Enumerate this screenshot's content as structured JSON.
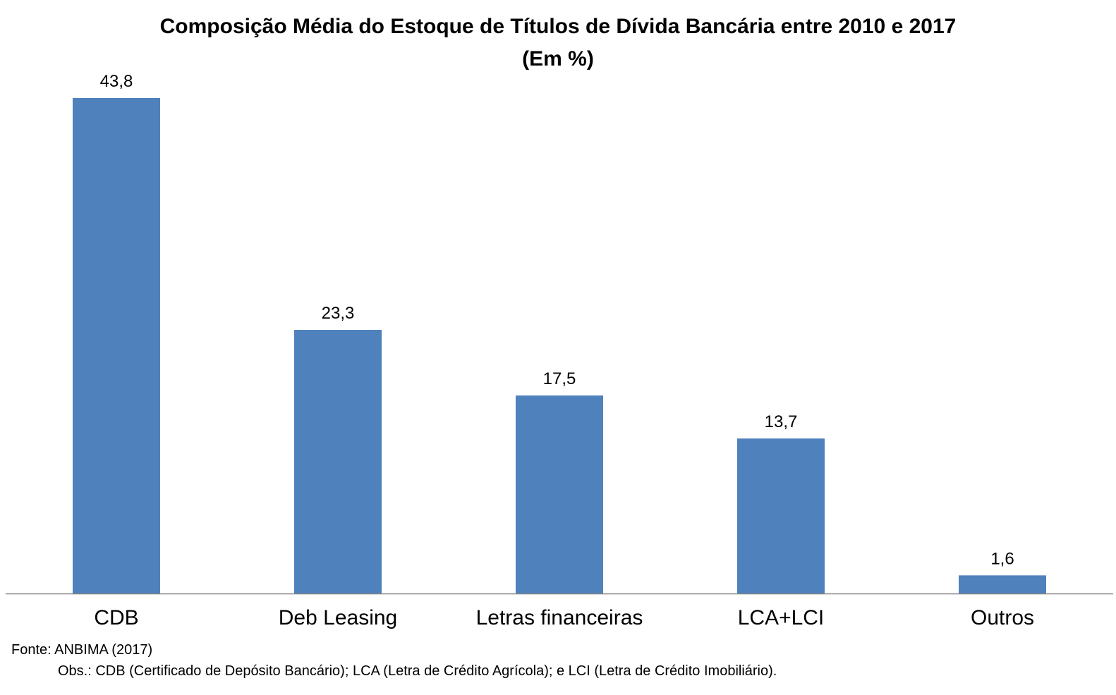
{
  "chart_data": {
    "type": "bar",
    "title": "Composição Média do Estoque de Títulos de Dívida Bancária entre 2010 e 2017",
    "subtitle": "(Em %)",
    "categories": [
      "CDB",
      "Deb Leasing",
      "Letras financeiras",
      "LCA+LCI",
      "Outros"
    ],
    "values": [
      43.8,
      23.3,
      17.5,
      13.7,
      1.6
    ],
    "data_labels": [
      "43,8",
      "23,3",
      "17,5",
      "13,7",
      "1,6"
    ],
    "xlabel": "",
    "ylabel": "",
    "ylim": [
      0,
      43.8
    ],
    "grid": false,
    "legend": "none",
    "bar_color": "#4f81bd",
    "axis_color": "#868686"
  },
  "notes": {
    "source": "Fonte: ANBIMA (2017)",
    "obs": "Obs.: CDB (Certificado de Depósito Bancário); LCA (Letra de Crédito Agrícola); e LCI (Letra de Crédito Imobiliário)."
  }
}
